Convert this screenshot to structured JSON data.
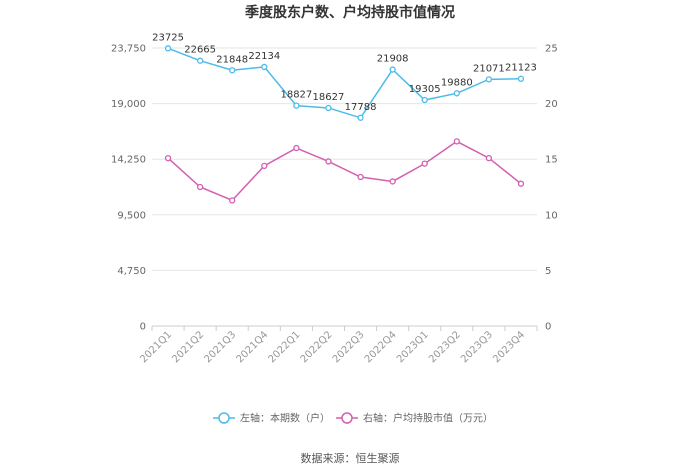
{
  "chart_data": {
    "type": "line",
    "title": "季度股东户数、户均持股市值情况",
    "source": "数据来源：恒生聚源",
    "categories": [
      "2021Q1",
      "2021Q2",
      "2021Q3",
      "2021Q4",
      "2022Q1",
      "2022Q2",
      "2022Q3",
      "2022Q4",
      "2023Q1",
      "2023Q2",
      "2023Q3",
      "2023Q4"
    ],
    "left_axis": {
      "ticks": [
        "0",
        "4,750",
        "9,500",
        "14,250",
        "19,000",
        "23,750"
      ],
      "ylim": [
        0,
        23750
      ]
    },
    "right_axis": {
      "ticks": [
        "0",
        "5",
        "10",
        "15",
        "20",
        "25"
      ],
      "ylim": [
        0,
        25
      ]
    },
    "series": [
      {
        "name": "左轴：本期数（户）",
        "axis": "left",
        "color": "#4dbbe8",
        "values": [
          23725,
          22665,
          21848,
          22134,
          18827,
          18627,
          17788,
          21908,
          19305,
          19880,
          21071,
          21123
        ],
        "labels": [
          "23725",
          "22665",
          "21848",
          "22134",
          "18827",
          "18627",
          "17788",
          "21908",
          "19305",
          "19880",
          "21071",
          "21123"
        ]
      },
      {
        "name": "右轴：户均持股市值（万元）",
        "axis": "right",
        "color": "#d45fb0",
        "values": [
          15.1,
          12.5,
          11.3,
          14.4,
          16.0,
          14.8,
          13.4,
          13.0,
          14.6,
          16.6,
          15.1,
          12.8
        ]
      }
    ],
    "grid": true,
    "legend": "bottom"
  }
}
